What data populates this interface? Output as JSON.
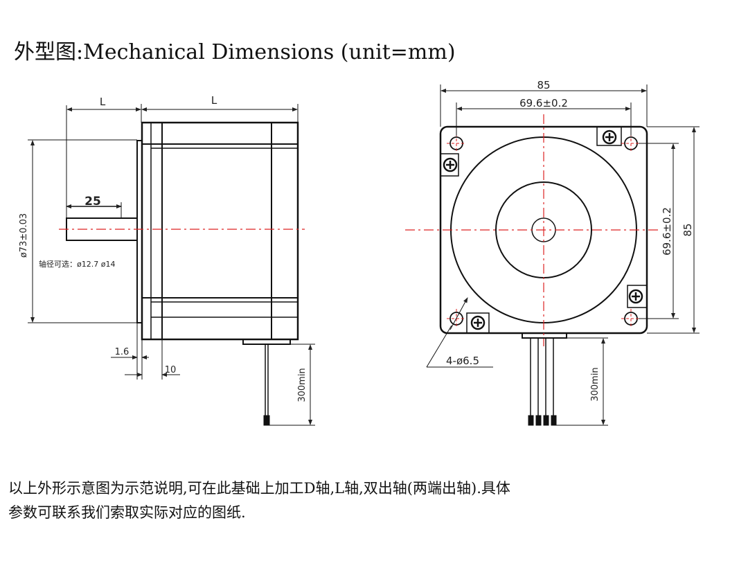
{
  "title": {
    "zh": "外型图",
    "sep": ":",
    "en": "Mechanical Dimensions (unit=mm)"
  },
  "side_view": {
    "length_left": "L",
    "length_right": "L",
    "shaft_length": "25",
    "diameter": "ø73±0.03",
    "shaft_options": "轴径可选：ø12.7 ø14",
    "flange_thickness": "1.6",
    "boss_length": "10",
    "lead_length": "300min"
  },
  "front_view": {
    "width": "85",
    "hole_spacing_h": "69.6±0.2",
    "hole_spacing_v": "69.6±0.2",
    "height": "85",
    "holes": "4-ø6.5",
    "lead_length": "300min"
  },
  "note": {
    "line1": "以上外形示意图为示范说明,可在此基础上加工D轴,L轴,双出轴(两端出轴).具体",
    "line2": "参数可联系我们索取实际对应的图纸."
  }
}
